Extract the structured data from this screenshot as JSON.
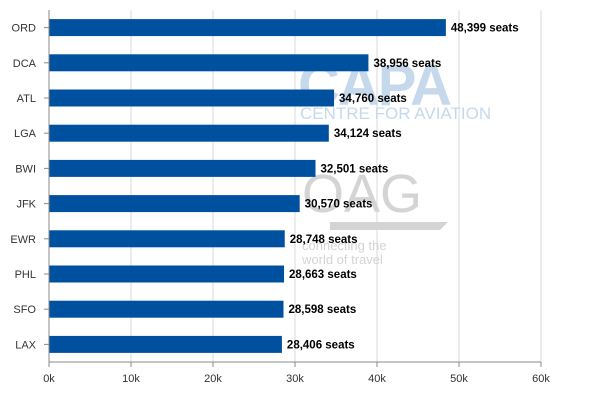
{
  "chart_data": {
    "type": "bar",
    "orientation": "horizontal",
    "categories": [
      "ORD",
      "DCA",
      "ATL",
      "LGA",
      "BWI",
      "JFK",
      "EWR",
      "PHL",
      "SFO",
      "LAX"
    ],
    "values": [
      48399,
      38956,
      34760,
      34124,
      32501,
      30570,
      28748,
      28663,
      28598,
      28406
    ],
    "data_labels": [
      "48,399 seats",
      "38,956 seats",
      "34,760 seats",
      "34,124 seats",
      "32,501 seats",
      "30,570 seats",
      "28,748 seats",
      "28,663 seats",
      "28,598 seats",
      "28,406 seats"
    ],
    "x_ticks": [
      "0k",
      "10k",
      "20k",
      "30k",
      "40k",
      "50k",
      "60k"
    ],
    "xlim": [
      0,
      60000
    ],
    "grid": "vertical",
    "bar_color": "#0050a0"
  },
  "watermark": {
    "brand": "CAPA",
    "brand_sub": "CENTRE FOR AVIATION",
    "partner": "OAG",
    "partner_sub_1": "connecting the",
    "partner_sub_2": "world of travel"
  }
}
